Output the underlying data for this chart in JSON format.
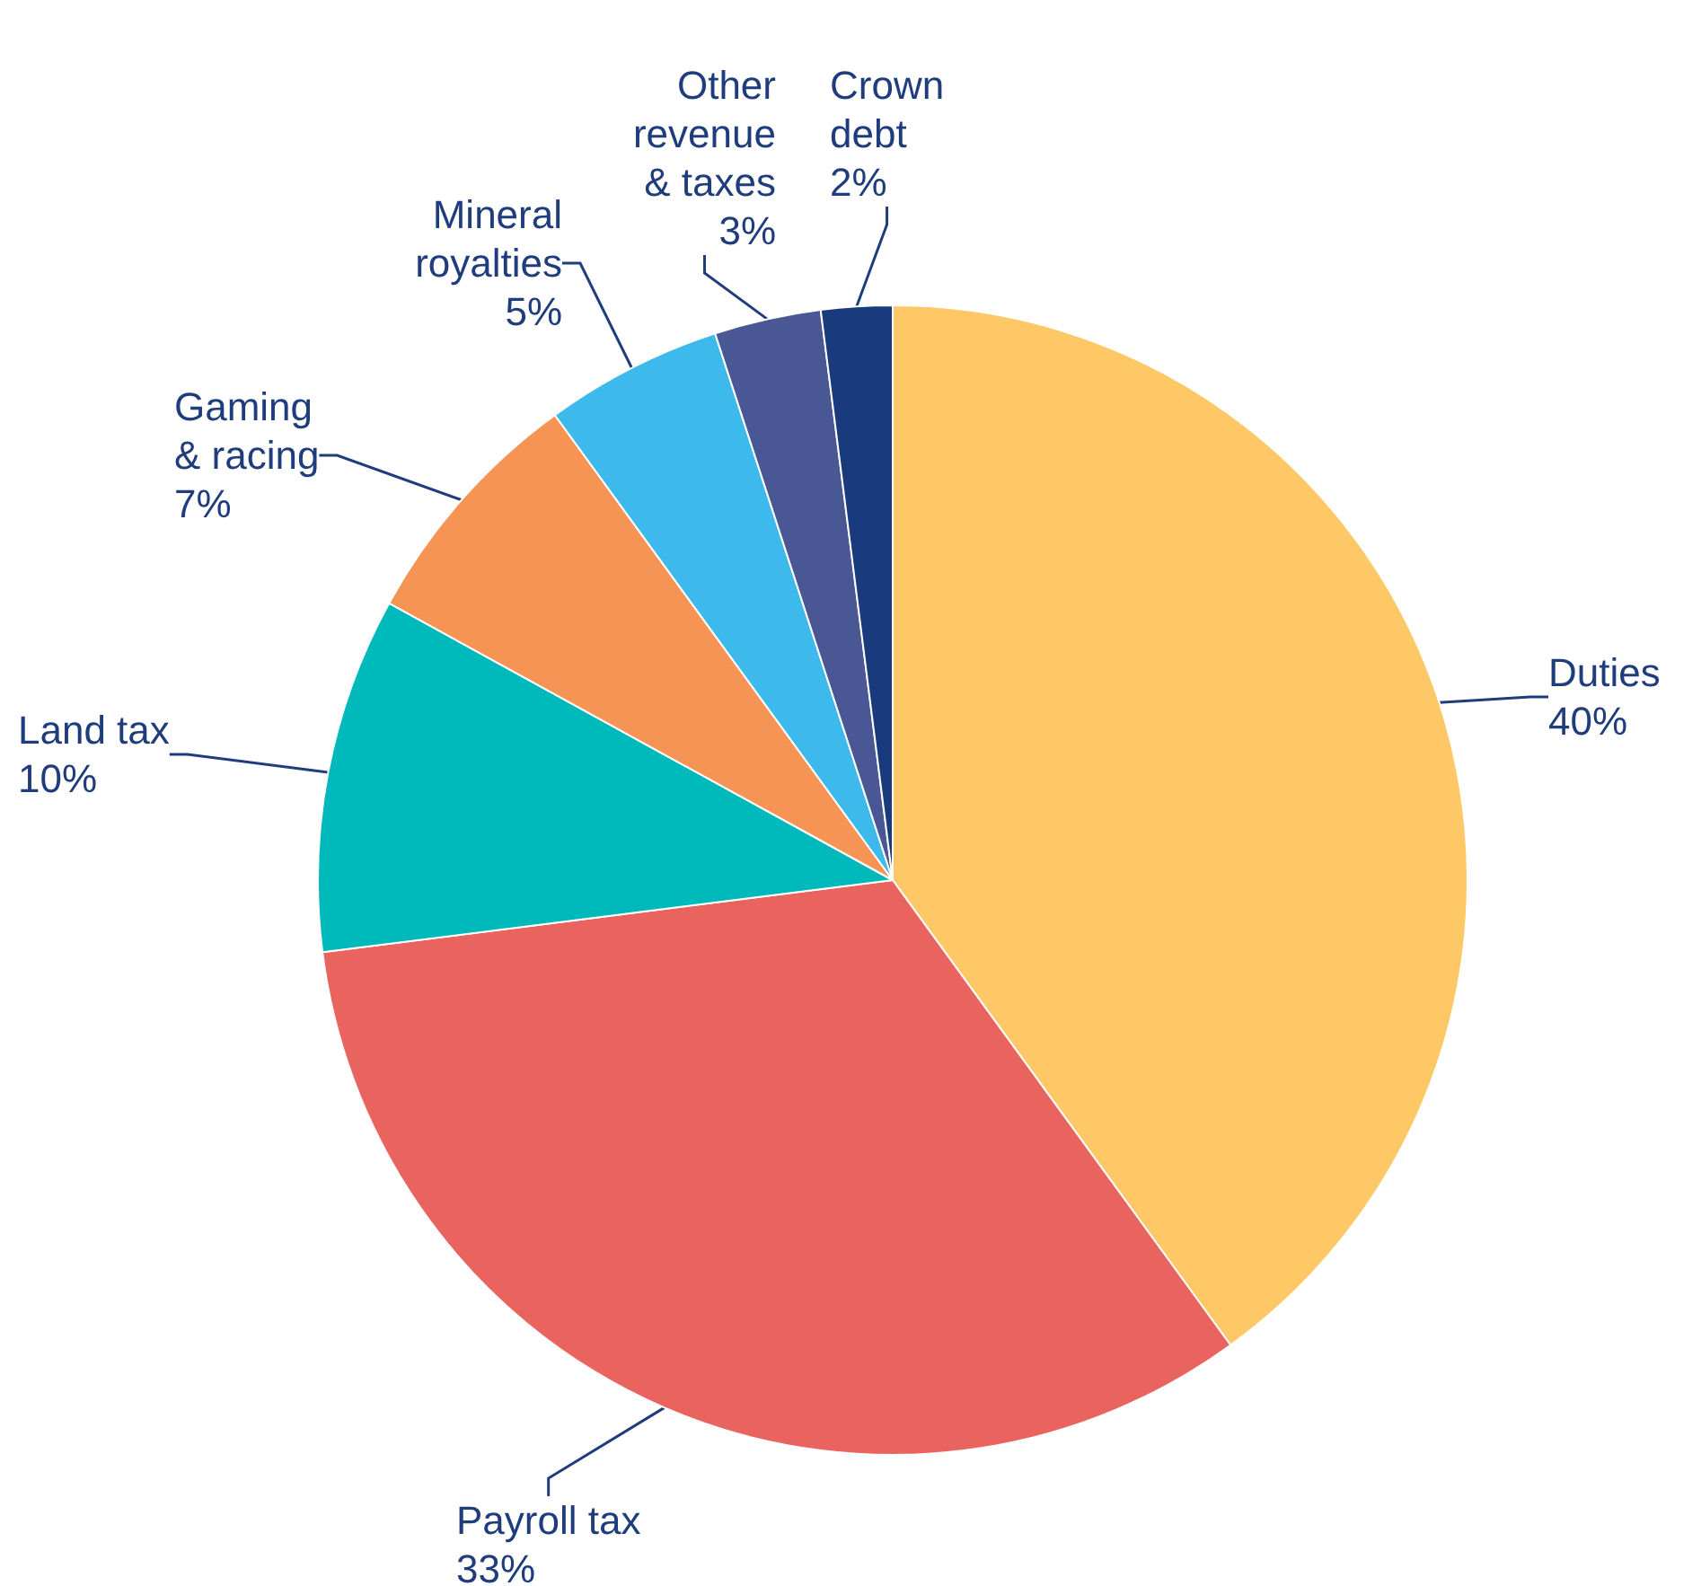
{
  "chart_data": {
    "type": "pie",
    "categories": [
      "Duties",
      "Payroll tax",
      "Land tax",
      "Gaming\n& racing",
      "Mineral\nroyalties",
      "Other\nrevenue\n& taxes",
      "Crown\ndebt"
    ],
    "values": [
      40,
      33,
      10,
      7,
      5,
      3,
      2
    ],
    "value_labels": [
      "40%",
      "33%",
      "10%",
      "7%",
      "5%",
      "3%",
      "2%"
    ],
    "colors": [
      "#fdc865",
      "#e9635f",
      "#00b9bb",
      "#f59455",
      "#3db9eb",
      "#4a5795",
      "#1a3a7e"
    ],
    "legend": false
  }
}
